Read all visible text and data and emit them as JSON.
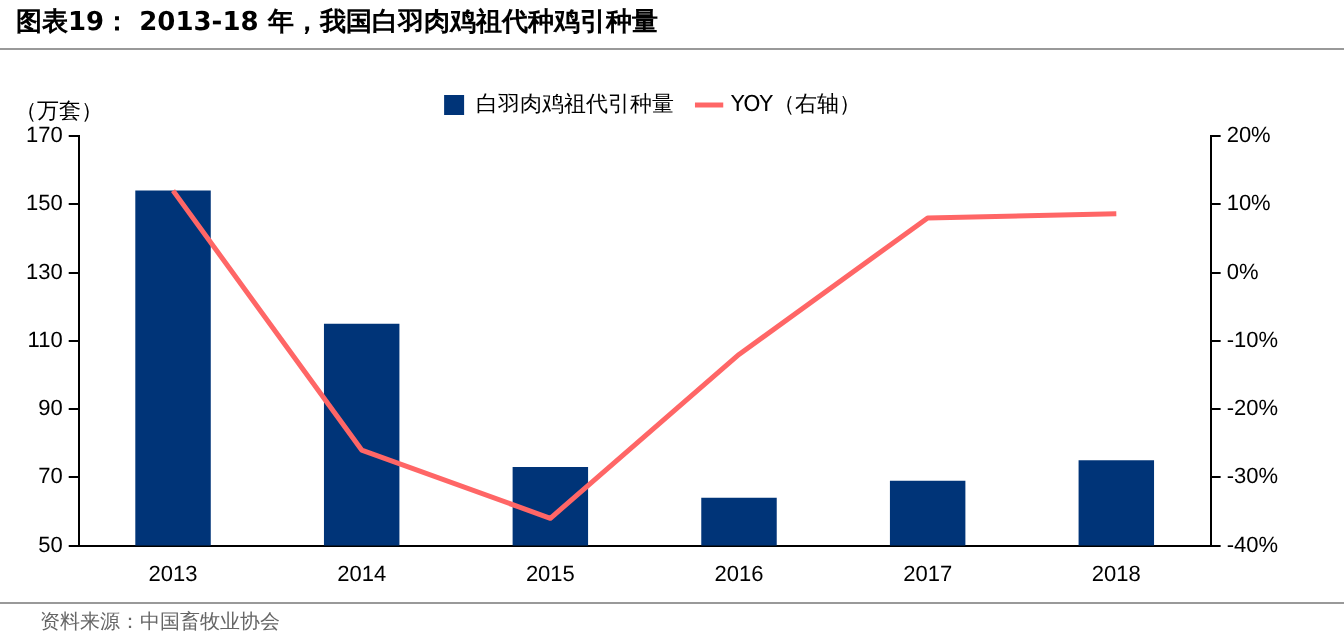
{
  "chart_data": {
    "type": "bar",
    "title": "图表19：  2013-18 年，我国白羽肉鸡祖代种鸡引种量",
    "ylabel": "（万套）",
    "categories": [
      "2013",
      "2014",
      "2015",
      "2016",
      "2017",
      "2018"
    ],
    "series": [
      {
        "name": "白羽肉鸡祖代引种量",
        "color": "#003478",
        "values": [
          154,
          115,
          73,
          64,
          69,
          75
        ]
      },
      {
        "name": "YOY（右轴）",
        "type": "line",
        "axis": "y2",
        "color": "#ff6666",
        "values": [
          12,
          -26,
          -36,
          -12,
          8,
          8.6
        ]
      }
    ],
    "ylim": [
      50,
      170
    ],
    "yticks": [
      50,
      70,
      90,
      110,
      130,
      150,
      170
    ],
    "y2lim": [
      -40,
      20
    ],
    "y2ticks": [
      {
        "value": -40,
        "label": "-40%"
      },
      {
        "value": -30,
        "label": "-30%"
      },
      {
        "value": -20,
        "label": "-20%"
      },
      {
        "value": -10,
        "label": "-10%"
      },
      {
        "value": 0,
        "label": "0%"
      },
      {
        "value": 10,
        "label": "10%"
      },
      {
        "value": 20,
        "label": "20%"
      }
    ],
    "grid": false,
    "legend": "top",
    "marker": "none",
    "annotations": [
      "资料来源：中国畜牧业协会"
    ]
  }
}
